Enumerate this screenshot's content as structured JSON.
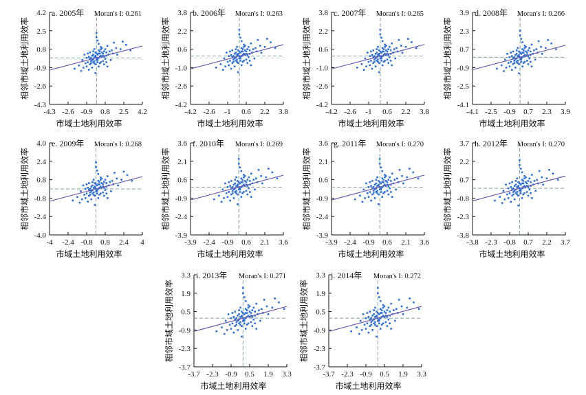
{
  "chart_data": [
    {
      "type": "scatter",
      "title": "a. 2005年",
      "moran_label": "Moran's I:",
      "moran": "0.261",
      "xlabel": "市域土地利用效率",
      "ylabel": "相邻市域土地利用效率",
      "xticks": [
        "-4.3",
        "-2.6",
        "-0.9",
        "0.8",
        "2.5",
        "4.2"
      ],
      "yticks": [
        "4.2",
        "2.5",
        "0.8",
        "-0.9",
        "-2.6",
        "-4.3"
      ],
      "xlim": [
        -4.3,
        4.2
      ],
      "ylim": [
        -4.3,
        4.2
      ],
      "slope": 0.261
    },
    {
      "type": "scatter",
      "title": "b. 2006年",
      "moran_label": "Moran's I:",
      "moran": "0.263",
      "xlabel": "市域土地利用效率",
      "ylabel": "相邻市域土地利用效率",
      "xticks": [
        "-4.2",
        "-2.6",
        "-1",
        "0.6",
        "2.2",
        "3.8"
      ],
      "yticks": [
        "3.8",
        "2.2",
        "0.6",
        "-1.0",
        "-2.6",
        "-4.2"
      ],
      "xlim": [
        -4.2,
        3.8
      ],
      "ylim": [
        -4.2,
        3.8
      ],
      "slope": 0.263
    },
    {
      "type": "scatter",
      "title": "c. 2007年",
      "moran_label": "Moran's I:",
      "moran": "0.265",
      "xlabel": "市域土地利用效率",
      "ylabel": "相邻市域土地利用效率",
      "xticks": [
        "-4.2",
        "-2.6",
        "-1",
        "0.6",
        "2.2",
        "3.8"
      ],
      "yticks": [
        "3.8",
        "2.2",
        "0.6",
        "-1.0",
        "-2.6",
        "-4.2"
      ],
      "xlim": [
        -4.2,
        3.8
      ],
      "ylim": [
        -4.2,
        3.8
      ],
      "slope": 0.265
    },
    {
      "type": "scatter",
      "title": "d. 2008年",
      "moran_label": "Moran's I:",
      "moran": "0.266",
      "xlabel": "市域土地利用效率",
      "ylabel": "相邻市域土地利用效率",
      "xticks": [
        "-4.1",
        "-2.5",
        "-0.9",
        "0.7",
        "2.3",
        "3.9"
      ],
      "yticks": [
        "3.9",
        "2.3",
        "0.7",
        "-0.9",
        "-2.5",
        "-4.1"
      ],
      "xlim": [
        -4.1,
        3.9
      ],
      "ylim": [
        -4.1,
        3.9
      ],
      "slope": 0.266
    },
    {
      "type": "scatter",
      "title": "e. 2009年",
      "moran_label": "Moran's I:",
      "moran": "0.268",
      "xlabel": "市域土地利用效率",
      "ylabel": "相邻市域土地利用效率",
      "xticks": [
        "-4",
        "-2.4",
        "-0.8",
        "0.8",
        "2.4",
        "4"
      ],
      "yticks": [
        "4.0",
        "2.4",
        "0.8",
        "-0.8",
        "-2.4",
        "-4.0"
      ],
      "xlim": [
        -4,
        4
      ],
      "ylim": [
        -4,
        4
      ],
      "slope": 0.268
    },
    {
      "type": "scatter",
      "title": "f. 2010年",
      "moran_label": "Moran's I:",
      "moran": "0.269",
      "xlabel": "市域土地利用效率",
      "ylabel": "相邻市域土地利用效率",
      "xticks": [
        "-3.9",
        "-2.4",
        "-0.9",
        "0.6",
        "2.1",
        "3.6"
      ],
      "yticks": [
        "3.6",
        "2.1",
        "0.6",
        "-0.9",
        "-2.4",
        "-3.9"
      ],
      "xlim": [
        -3.9,
        3.6
      ],
      "ylim": [
        -3.9,
        3.6
      ],
      "slope": 0.269
    },
    {
      "type": "scatter",
      "title": "g. 2011年",
      "moran_label": "Moran's I:",
      "moran": "0.270",
      "xlabel": "市域土地利用效率",
      "ylabel": "相邻市域土地利用效率",
      "xticks": [
        "-3.9",
        "-2.4",
        "-0.9",
        "0.6",
        "2.1",
        "3.6"
      ],
      "yticks": [
        "3.6",
        "2.1",
        "0.6",
        "-0.9",
        "-2.4",
        "-3.9"
      ],
      "xlim": [
        -3.9,
        3.6
      ],
      "ylim": [
        -3.9,
        3.6
      ],
      "slope": 0.27
    },
    {
      "type": "scatter",
      "title": "h. 2012年",
      "moran_label": "Moran's I:",
      "moran": "0.270",
      "xlabel": "市域土地利用效率",
      "ylabel": "相邻市域土地利用效率",
      "xticks": [
        "-3.8",
        "-2.3",
        "-0.8",
        "0.7",
        "2.2",
        "3.7"
      ],
      "yticks": [
        "3.7",
        "2.2",
        "0.7",
        "-0.8",
        "-2.3",
        "-3.8"
      ],
      "xlim": [
        -3.8,
        3.7
      ],
      "ylim": [
        -3.8,
        3.7
      ],
      "slope": 0.27
    },
    {
      "type": "scatter",
      "title": "i. 2013年",
      "moran_label": "Moran's I:",
      "moran": "0.271",
      "xlabel": "市域土地利用效率",
      "ylabel": "相邻市域土地利用效率",
      "xticks": [
        "-3.7",
        "-2.3",
        "-0.9",
        "0.5",
        "1.9",
        "3.3"
      ],
      "yticks": [
        "3.3",
        "1.9",
        "0.5",
        "-0.9",
        "-2.3",
        "-3.7"
      ],
      "xlim": [
        -3.7,
        3.3
      ],
      "ylim": [
        -3.7,
        3.3
      ],
      "slope": 0.271
    },
    {
      "type": "scatter",
      "title": "j. 2014年",
      "moran_label": "Moran's I:",
      "moran": "0.272",
      "xlabel": "市域土地利用效率",
      "ylabel": "相邻市域土地利用效率",
      "xticks": [
        "-3.7",
        "-2.3",
        "-0.9",
        "0.5",
        "1.9",
        "3.3"
      ],
      "yticks": [
        "3.3",
        "1.9",
        "0.5",
        "-0.9",
        "-2.3",
        "-3.7"
      ],
      "xlim": [
        -3.7,
        3.3
      ],
      "ylim": [
        -3.7,
        3.3
      ],
      "slope": 0.272
    }
  ],
  "points": [
    [
      -0.2,
      0.1
    ],
    [
      0.1,
      -0.2
    ],
    [
      0.3,
      0.4
    ],
    [
      -0.5,
      -0.3
    ],
    [
      0.6,
      0.2
    ],
    [
      -0.1,
      -0.6
    ],
    [
      0.2,
      0.7
    ],
    [
      -0.7,
      0.1
    ],
    [
      0.9,
      0.5
    ],
    [
      -0.3,
      0.3
    ],
    [
      0.4,
      -0.4
    ],
    [
      1.2,
      0.6
    ],
    [
      -1.0,
      -0.5
    ],
    [
      0.0,
      0.0
    ],
    [
      0.5,
      0.9
    ],
    [
      -0.4,
      -0.9
    ],
    [
      1.5,
      0.4
    ],
    [
      -1.3,
      -0.2
    ],
    [
      0.8,
      -0.1
    ],
    [
      -0.6,
      0.5
    ],
    [
      0.2,
      -0.8
    ],
    [
      1.0,
      1.1
    ],
    [
      -0.9,
      -0.8
    ],
    [
      0.3,
      0.1
    ],
    [
      -0.2,
      -0.3
    ],
    [
      0.7,
      0.6
    ],
    [
      -0.5,
      0.0
    ],
    [
      0.1,
      0.3
    ],
    [
      1.8,
      0.9
    ],
    [
      -1.6,
      -0.7
    ],
    [
      0.4,
      0.2
    ],
    [
      -0.1,
      0.5
    ],
    [
      0.6,
      -0.3
    ],
    [
      -0.8,
      -0.4
    ],
    [
      0.9,
      0.2
    ],
    [
      -0.3,
      -0.1
    ],
    [
      0.2,
      1.3
    ],
    [
      0.0,
      1.9
    ],
    [
      0.1,
      1.6
    ],
    [
      -0.1,
      -1.4
    ],
    [
      2.2,
      0.8
    ],
    [
      -2.0,
      -1.0
    ],
    [
      0.5,
      0.5
    ],
    [
      -0.4,
      0.2
    ],
    [
      1.3,
      -0.2
    ],
    [
      -1.1,
      0.3
    ],
    [
      0.3,
      -0.5
    ],
    [
      -0.6,
      -0.6
    ],
    [
      1.1,
      0.3
    ],
    [
      -0.2,
      0.8
    ],
    [
      0.7,
      -0.6
    ],
    [
      -1.4,
      -1.2
    ],
    [
      0.4,
      1.0
    ],
    [
      0.0,
      -0.2
    ],
    [
      2.7,
      1.2
    ],
    [
      -0.9,
      0.0
    ],
    [
      1.6,
      1.4
    ],
    [
      -0.7,
      -1.1
    ],
    [
      0.2,
      0.0
    ],
    [
      -0.3,
      0.6
    ],
    [
      0.8,
      0.8
    ],
    [
      -0.5,
      -0.5
    ],
    [
      1.4,
      0.7
    ],
    [
      0.6,
      0.4
    ],
    [
      -1.2,
      -0.9
    ],
    [
      0.1,
      -0.4
    ],
    [
      3.1,
      0.7
    ],
    [
      -0.1,
      0.2
    ],
    [
      0.3,
      0.6
    ],
    [
      -0.4,
      -0.2
    ],
    [
      0.9,
      -0.4
    ],
    [
      -0.8,
      0.4
    ],
    [
      0.5,
      0.1
    ],
    [
      0.0,
      0.4
    ],
    [
      -0.6,
      -0.1
    ],
    [
      1.9,
      0.3
    ],
    [
      -0.2,
      -0.5
    ],
    [
      0.4,
      0.8
    ],
    [
      2.4,
      1.5
    ],
    [
      1.0,
      -0.8
    ],
    [
      0.2,
      0.4
    ],
    [
      -0.3,
      -0.4
    ],
    [
      0.7,
      0.1
    ],
    [
      -0.1,
      0.1
    ],
    [
      0.1,
      -0.1
    ],
    [
      0.0,
      2.3
    ]
  ]
}
